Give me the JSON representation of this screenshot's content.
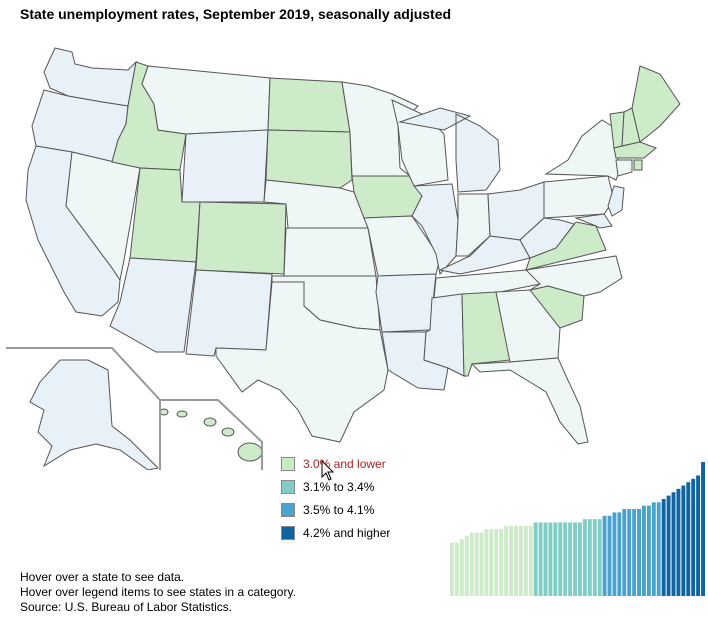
{
  "title": "State unemployment rates, September 2019, seasonally adjusted",
  "legend": [
    {
      "label": "3.0% and lower",
      "color": "#cdeac9",
      "hover": true
    },
    {
      "label": "3.1% to 3.4%",
      "color": "#7fcdc4",
      "hover": false
    },
    {
      "label": "3.5% to 4.1%",
      "color": "#4aa3cf",
      "hover": false
    },
    {
      "label": "4.2% and higher",
      "color": "#0f64a2",
      "hover": false
    }
  ],
  "notes": {
    "line1": "Hover over a state to see data.",
    "line2": "Hover over legend items to see states in a category.",
    "line3": "Source: U.S. Bureau of Labor Statistics."
  },
  "colors": {
    "low": "#cdeac9",
    "mid_low": "#7fcdc4",
    "mid_high": "#4aa3cf",
    "high": "#0f64a2",
    "map_pale": "#eef7f6",
    "map_blue_pale": "#e8f0f8",
    "state_border": "#555555"
  },
  "chart_data": {
    "type": "bar",
    "description_in_pixels": false,
    "values_rank": [
      1,
      1,
      2,
      3,
      4,
      4,
      4,
      5,
      5,
      5,
      5,
      6,
      6,
      6,
      6,
      6,
      6,
      7,
      7,
      7,
      7,
      7,
      7,
      7,
      7,
      7,
      7,
      8,
      8,
      8,
      8,
      9,
      9,
      10,
      10,
      11,
      11,
      11,
      11,
      12,
      12,
      13,
      13,
      14,
      15,
      16,
      17,
      18,
      19,
      20,
      21,
      25
    ],
    "categories_per_bar": [
      "low",
      "low",
      "low",
      "low",
      "low",
      "low",
      "low",
      "low",
      "low",
      "low",
      "low",
      "low",
      "low",
      "low",
      "low",
      "low",
      "low",
      "mid_low",
      "mid_low",
      "mid_low",
      "mid_low",
      "mid_low",
      "mid_low",
      "mid_low",
      "mid_low",
      "mid_low",
      "mid_low",
      "mid_low",
      "mid_low",
      "mid_low",
      "mid_low",
      "mid_high",
      "mid_high",
      "mid_high",
      "mid_high",
      "mid_high",
      "mid_high",
      "mid_high",
      "mid_high",
      "mid_high",
      "mid_high",
      "mid_high",
      "mid_high",
      "high",
      "high",
      "high",
      "high",
      "high",
      "high",
      "high",
      "high",
      "high"
    ]
  }
}
